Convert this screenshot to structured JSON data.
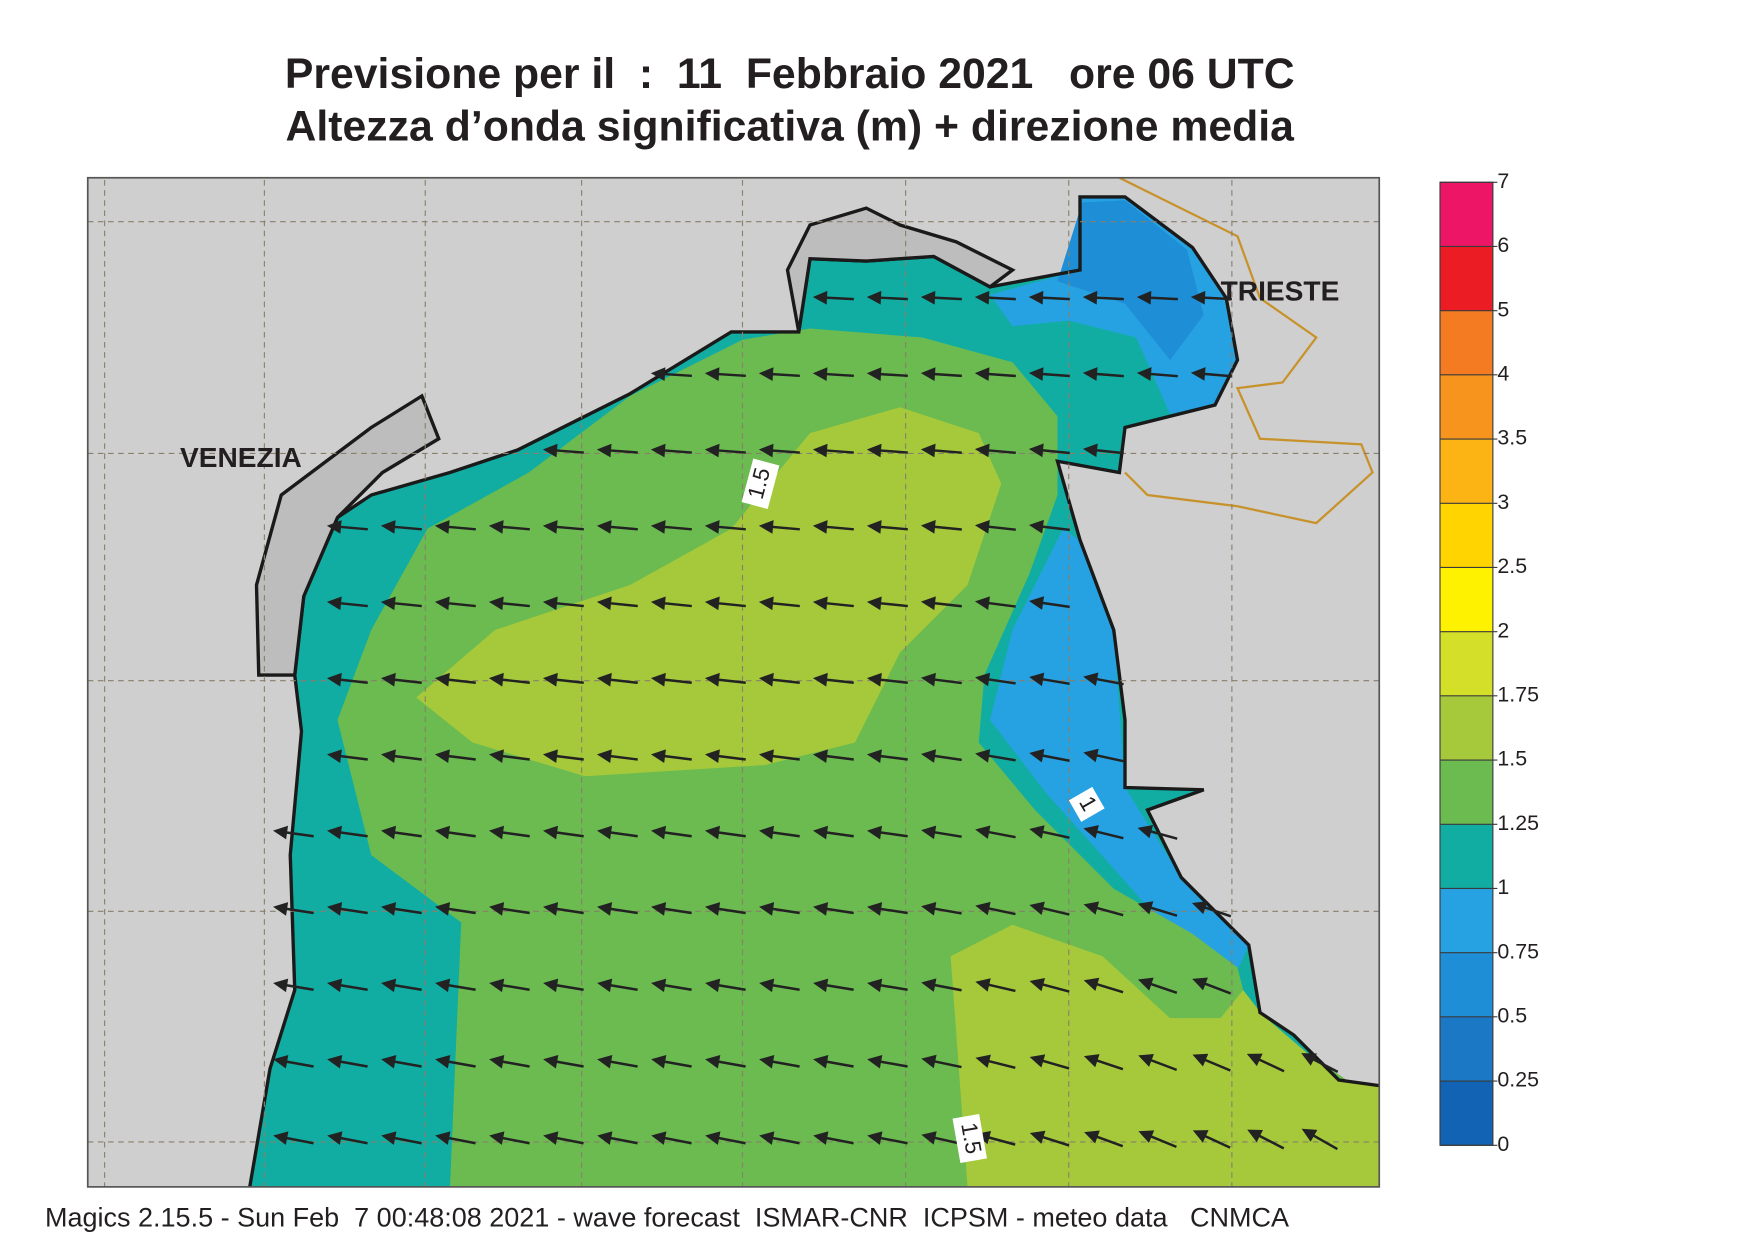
{
  "title": {
    "line1": "Previsione per il  :  11  Febbraio 2021   ore 06 UTC",
    "line2": "Altezza d’onda significativa (m) + direzione media"
  },
  "map": {
    "cities": [
      "VENEZIA",
      "TRIESTE"
    ],
    "contour_labels": [
      "1.5",
      "1",
      "1.5"
    ]
  },
  "colorbar": {
    "ticks": [
      0,
      0.25,
      0.5,
      0.75,
      1,
      1.25,
      1.5,
      1.75,
      2,
      2.5,
      3,
      3.5,
      4,
      5,
      6,
      7
    ],
    "colors": [
      "#1263b3",
      "#1a78c4",
      "#1e8ed6",
      "#26a2e2",
      "#12ada2",
      "#6bbb50",
      "#a6c93b",
      "#d4df2a",
      "#fff200",
      "#ffd400",
      "#fcb415",
      "#f7941e",
      "#f47b21",
      "#ec1c24",
      "#ed1566"
    ]
  },
  "footer": "Magics 2.15.5 - Sun Feb  7 00:48:08 2021 - wave forecast  ISMAR-CNR  ICPSM - meteo data   CNMCA"
}
